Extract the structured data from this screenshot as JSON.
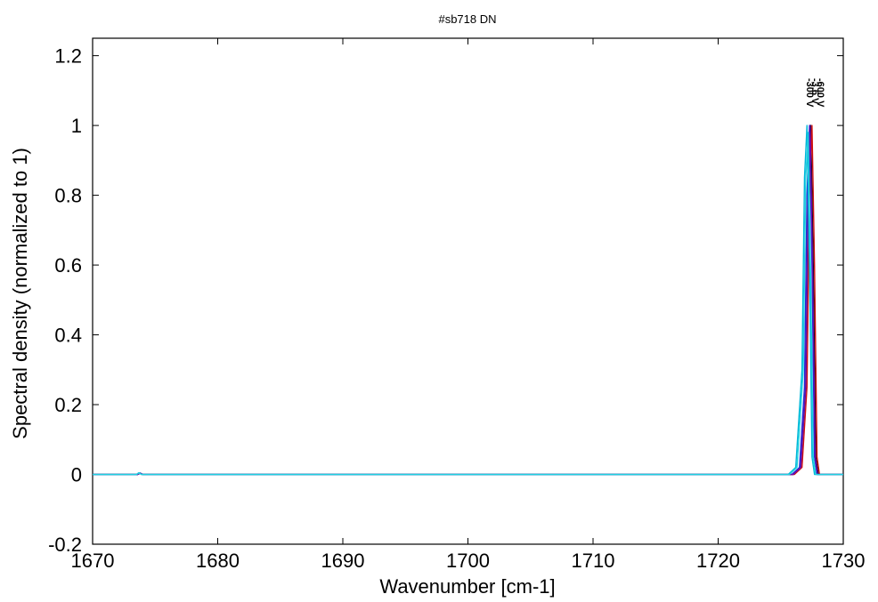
{
  "chart_data": {
    "type": "line",
    "title": "#sb718 DN",
    "xlabel": "Wavenumber [cm-1]",
    "ylabel": "Spectral density (normalized to 1)",
    "xlim": [
      1670,
      1730
    ],
    "ylim": [
      -0.2,
      1.25
    ],
    "x_ticks": [
      1670,
      1680,
      1690,
      1700,
      1710,
      1720,
      1730
    ],
    "y_ticks": [
      -0.2,
      0,
      0.2,
      0.4,
      0.6,
      0.8,
      1,
      1.2
    ],
    "x_tick_labels": [
      "1670",
      "1680",
      "1690",
      "1700",
      "1710",
      "1720",
      "1730"
    ],
    "y_tick_labels": [
      "-0.2",
      "0",
      "0.2",
      "0.4",
      "0.6",
      "0.8",
      "1",
      "1.2"
    ],
    "grid": false,
    "legend": "none",
    "peak_labels": [
      "-3.6 V",
      "-300 V",
      "-600 V"
    ],
    "series": [
      {
        "color": "#000000",
        "values": [
          [
            1670,
            0.0
          ],
          [
            1673.6,
            0.0
          ],
          [
            1673.8,
            0.003
          ],
          [
            1674.0,
            0.0
          ],
          [
            1726.0,
            0.0
          ],
          [
            1726.6,
            0.02
          ],
          [
            1727.0,
            0.25
          ],
          [
            1727.2,
            0.8
          ],
          [
            1727.4,
            1.0
          ],
          [
            1727.6,
            0.6
          ],
          [
            1727.8,
            0.05
          ],
          [
            1728.0,
            0.0
          ],
          [
            1730,
            0.0
          ]
        ]
      },
      {
        "color": "#d01010",
        "values": [
          [
            1670,
            0.0
          ],
          [
            1673.6,
            0.0
          ],
          [
            1673.8,
            0.004
          ],
          [
            1674.0,
            0.0
          ],
          [
            1726.1,
            0.0
          ],
          [
            1726.7,
            0.02
          ],
          [
            1727.1,
            0.25
          ],
          [
            1727.3,
            0.8
          ],
          [
            1727.5,
            1.0
          ],
          [
            1727.7,
            0.6
          ],
          [
            1727.9,
            0.05
          ],
          [
            1728.1,
            0.0
          ],
          [
            1730,
            0.0
          ]
        ]
      },
      {
        "color": "#1e2ad8",
        "values": [
          [
            1670,
            0.0
          ],
          [
            1673.6,
            0.0
          ],
          [
            1673.8,
            0.004
          ],
          [
            1674.0,
            0.0
          ],
          [
            1725.9,
            0.0
          ],
          [
            1726.5,
            0.02
          ],
          [
            1726.9,
            0.25
          ],
          [
            1727.1,
            0.8
          ],
          [
            1727.3,
            1.0
          ],
          [
            1727.5,
            0.6
          ],
          [
            1727.7,
            0.05
          ],
          [
            1727.9,
            0.0
          ],
          [
            1730,
            0.0
          ]
        ]
      },
      {
        "color": "#6a0dad",
        "values": [
          [
            1670,
            0.0
          ],
          [
            1673.6,
            0.0
          ],
          [
            1673.8,
            0.003
          ],
          [
            1674.0,
            0.0
          ],
          [
            1726.0,
            0.0
          ],
          [
            1726.6,
            0.02
          ],
          [
            1727.0,
            0.25
          ],
          [
            1727.2,
            0.8
          ],
          [
            1727.35,
            1.0
          ],
          [
            1727.55,
            0.6
          ],
          [
            1727.75,
            0.05
          ],
          [
            1727.95,
            0.0
          ],
          [
            1730,
            0.0
          ]
        ]
      },
      {
        "color": "#00b7d8",
        "values": [
          [
            1670,
            0.0
          ],
          [
            1673.5,
            0.0
          ],
          [
            1673.7,
            0.005
          ],
          [
            1673.9,
            0.0
          ],
          [
            1725.6,
            0.0
          ],
          [
            1726.2,
            0.02
          ],
          [
            1726.7,
            0.3
          ],
          [
            1726.9,
            0.85
          ],
          [
            1727.1,
            1.0
          ],
          [
            1727.3,
            0.6
          ],
          [
            1727.5,
            0.05
          ],
          [
            1727.7,
            0.0
          ],
          [
            1730,
            0.0
          ]
        ]
      },
      {
        "color": "#20d0e0",
        "values": [
          [
            1670,
            0.0
          ],
          [
            1673.5,
            0.0
          ],
          [
            1673.7,
            0.004
          ],
          [
            1673.9,
            0.0
          ],
          [
            1725.7,
            0.0
          ],
          [
            1726.3,
            0.02
          ],
          [
            1726.8,
            0.3
          ],
          [
            1727.0,
            0.85
          ],
          [
            1727.2,
            0.98
          ],
          [
            1727.4,
            0.55
          ],
          [
            1727.6,
            0.05
          ],
          [
            1727.8,
            0.0
          ],
          [
            1730,
            0.0
          ]
        ]
      }
    ]
  }
}
